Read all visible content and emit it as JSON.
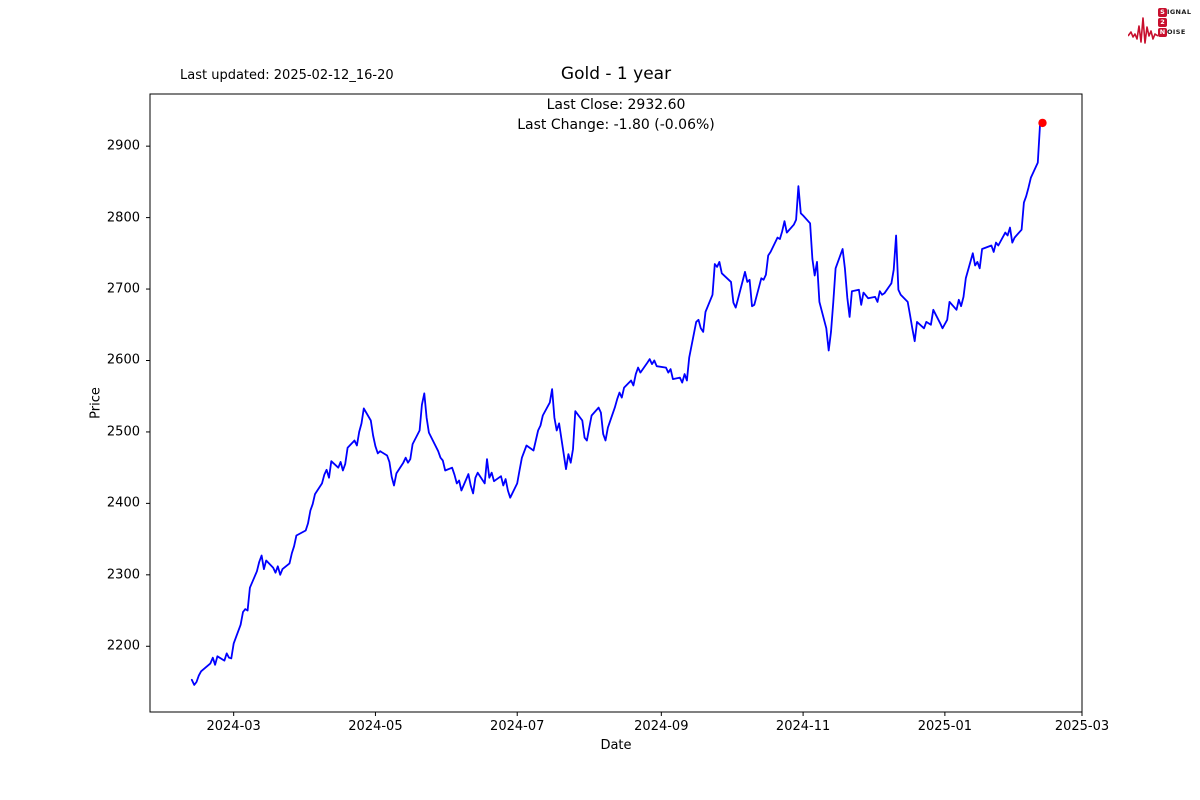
{
  "header": {
    "last_updated": "Last updated: 2025-02-12_16-20"
  },
  "logo": {
    "word1_initial": "S",
    "word1_rest": "IGNAL",
    "word2": "2",
    "word3_initial": "N",
    "word3_rest": "OISE",
    "color": "#c8102e"
  },
  "chart_data": {
    "type": "line",
    "title": "Gold - 1 year",
    "subtitle_lines": [
      "Last Close: 2932.60",
      "Last Change: -1.80 (-0.06%)"
    ],
    "xlabel": "Date",
    "ylabel": "Price",
    "last_close": 2932.6,
    "last_change": -1.8,
    "last_change_pct": -0.06,
    "line_color": "#0000ff",
    "marker_color": "#ff0000",
    "axis_color": "#000000",
    "grid": false,
    "legend": false,
    "x_range": [
      "2024-01-25",
      "2025-03-01"
    ],
    "y_range": [
      2108,
      2973
    ],
    "y_ticks": [
      2200,
      2300,
      2400,
      2500,
      2600,
      2700,
      2800,
      2900
    ],
    "x_ticks": [
      {
        "label": "2024-03",
        "date": "2024-03-01"
      },
      {
        "label": "2024-05",
        "date": "2024-05-01"
      },
      {
        "label": "2024-07",
        "date": "2024-07-01"
      },
      {
        "label": "2024-09",
        "date": "2024-09-01"
      },
      {
        "label": "2024-11",
        "date": "2024-11-01"
      },
      {
        "label": "2025-01",
        "date": "2025-01-01"
      },
      {
        "label": "2025-03",
        "date": "2025-03-01"
      }
    ],
    "series": [
      {
        "name": "Gold",
        "points": [
          [
            "2024-02-12",
            2153
          ],
          [
            "2024-02-13",
            2146
          ],
          [
            "2024-02-14",
            2150
          ],
          [
            "2024-02-15",
            2159
          ],
          [
            "2024-02-16",
            2165
          ],
          [
            "2024-02-20",
            2176
          ],
          [
            "2024-02-21",
            2184
          ],
          [
            "2024-02-22",
            2174
          ],
          [
            "2024-02-23",
            2186
          ],
          [
            "2024-02-26",
            2180
          ],
          [
            "2024-02-27",
            2190
          ],
          [
            "2024-02-28",
            2184
          ],
          [
            "2024-02-29",
            2183
          ],
          [
            "2024-03-01",
            2204
          ],
          [
            "2024-03-04",
            2230
          ],
          [
            "2024-03-05",
            2248
          ],
          [
            "2024-03-06",
            2252
          ],
          [
            "2024-03-07",
            2250
          ],
          [
            "2024-03-08",
            2282
          ],
          [
            "2024-03-11",
            2305
          ],
          [
            "2024-03-12",
            2318
          ],
          [
            "2024-03-13",
            2327
          ],
          [
            "2024-03-14",
            2308
          ],
          [
            "2024-03-15",
            2320
          ],
          [
            "2024-03-18",
            2310
          ],
          [
            "2024-03-19",
            2303
          ],
          [
            "2024-03-20",
            2312
          ],
          [
            "2024-03-21",
            2300
          ],
          [
            "2024-03-22",
            2308
          ],
          [
            "2024-03-25",
            2316
          ],
          [
            "2024-03-26",
            2330
          ],
          [
            "2024-03-27",
            2340
          ],
          [
            "2024-03-28",
            2355
          ],
          [
            "2024-04-01",
            2362
          ],
          [
            "2024-04-02",
            2372
          ],
          [
            "2024-04-03",
            2390
          ],
          [
            "2024-04-04",
            2399
          ],
          [
            "2024-04-05",
            2413
          ],
          [
            "2024-04-08",
            2428
          ],
          [
            "2024-04-09",
            2440
          ],
          [
            "2024-04-10",
            2447
          ],
          [
            "2024-04-11",
            2436
          ],
          [
            "2024-04-12",
            2459
          ],
          [
            "2024-04-15",
            2450
          ],
          [
            "2024-04-16",
            2458
          ],
          [
            "2024-04-17",
            2446
          ],
          [
            "2024-04-18",
            2455
          ],
          [
            "2024-04-19",
            2478
          ],
          [
            "2024-04-22",
            2488
          ],
          [
            "2024-04-23",
            2481
          ],
          [
            "2024-04-24",
            2500
          ],
          [
            "2024-04-25",
            2512
          ],
          [
            "2024-04-26",
            2533
          ],
          [
            "2024-04-29",
            2516
          ],
          [
            "2024-04-30",
            2495
          ],
          [
            "2024-05-01",
            2480
          ],
          [
            "2024-05-02",
            2470
          ],
          [
            "2024-05-03",
            2473
          ],
          [
            "2024-05-06",
            2467
          ],
          [
            "2024-05-07",
            2458
          ],
          [
            "2024-05-08",
            2437
          ],
          [
            "2024-05-09",
            2425
          ],
          [
            "2024-05-10",
            2442
          ],
          [
            "2024-05-13",
            2457
          ],
          [
            "2024-05-14",
            2464
          ],
          [
            "2024-05-15",
            2457
          ],
          [
            "2024-05-16",
            2462
          ],
          [
            "2024-05-17",
            2483
          ],
          [
            "2024-05-20",
            2502
          ],
          [
            "2024-05-21",
            2538
          ],
          [
            "2024-05-22",
            2554
          ],
          [
            "2024-05-23",
            2520
          ],
          [
            "2024-05-24",
            2499
          ],
          [
            "2024-05-28",
            2473
          ],
          [
            "2024-05-29",
            2464
          ],
          [
            "2024-05-30",
            2460
          ],
          [
            "2024-05-31",
            2446
          ],
          [
            "2024-06-03",
            2450
          ],
          [
            "2024-06-04",
            2440
          ],
          [
            "2024-06-05",
            2428
          ],
          [
            "2024-06-06",
            2432
          ],
          [
            "2024-06-07",
            2418
          ],
          [
            "2024-06-10",
            2441
          ],
          [
            "2024-06-11",
            2425
          ],
          [
            "2024-06-12",
            2414
          ],
          [
            "2024-06-13",
            2436
          ],
          [
            "2024-06-14",
            2443
          ],
          [
            "2024-06-17",
            2428
          ],
          [
            "2024-06-18",
            2462
          ],
          [
            "2024-06-19",
            2436
          ],
          [
            "2024-06-20",
            2443
          ],
          [
            "2024-06-21",
            2431
          ],
          [
            "2024-06-24",
            2438
          ],
          [
            "2024-06-25",
            2425
          ],
          [
            "2024-06-26",
            2434
          ],
          [
            "2024-06-27",
            2418
          ],
          [
            "2024-06-28",
            2408
          ],
          [
            "2024-07-01",
            2428
          ],
          [
            "2024-07-02",
            2446
          ],
          [
            "2024-07-03",
            2464
          ],
          [
            "2024-07-05",
            2481
          ],
          [
            "2024-07-08",
            2474
          ],
          [
            "2024-07-09",
            2488
          ],
          [
            "2024-07-10",
            2502
          ],
          [
            "2024-07-11",
            2509
          ],
          [
            "2024-07-12",
            2523
          ],
          [
            "2024-07-15",
            2541
          ],
          [
            "2024-07-16",
            2560
          ],
          [
            "2024-07-17",
            2520
          ],
          [
            "2024-07-18",
            2502
          ],
          [
            "2024-07-19",
            2512
          ],
          [
            "2024-07-22",
            2448
          ],
          [
            "2024-07-23",
            2469
          ],
          [
            "2024-07-24",
            2457
          ],
          [
            "2024-07-25",
            2476
          ],
          [
            "2024-07-26",
            2529
          ],
          [
            "2024-07-29",
            2516
          ],
          [
            "2024-07-30",
            2492
          ],
          [
            "2024-07-31",
            2488
          ],
          [
            "2024-08-01",
            2506
          ],
          [
            "2024-08-02",
            2523
          ],
          [
            "2024-08-05",
            2534
          ],
          [
            "2024-08-06",
            2527
          ],
          [
            "2024-08-07",
            2497
          ],
          [
            "2024-08-08",
            2488
          ],
          [
            "2024-08-09",
            2506
          ],
          [
            "2024-08-12",
            2534
          ],
          [
            "2024-08-13",
            2546
          ],
          [
            "2024-08-14",
            2555
          ],
          [
            "2024-08-15",
            2548
          ],
          [
            "2024-08-16",
            2562
          ],
          [
            "2024-08-19",
            2572
          ],
          [
            "2024-08-20",
            2565
          ],
          [
            "2024-08-21",
            2581
          ],
          [
            "2024-08-22",
            2590
          ],
          [
            "2024-08-23",
            2583
          ],
          [
            "2024-08-26",
            2597
          ],
          [
            "2024-08-27",
            2602
          ],
          [
            "2024-08-28",
            2595
          ],
          [
            "2024-08-29",
            2600
          ],
          [
            "2024-08-30",
            2592
          ],
          [
            "2024-09-03",
            2590
          ],
          [
            "2024-09-04",
            2583
          ],
          [
            "2024-09-05",
            2588
          ],
          [
            "2024-09-06",
            2574
          ],
          [
            "2024-09-09",
            2576
          ],
          [
            "2024-09-10",
            2569
          ],
          [
            "2024-09-11",
            2581
          ],
          [
            "2024-09-12",
            2572
          ],
          [
            "2024-09-13",
            2604
          ],
          [
            "2024-09-16",
            2654
          ],
          [
            "2024-09-17",
            2657
          ],
          [
            "2024-09-18",
            2645
          ],
          [
            "2024-09-19",
            2640
          ],
          [
            "2024-09-20",
            2668
          ],
          [
            "2024-09-23",
            2692
          ],
          [
            "2024-09-24",
            2735
          ],
          [
            "2024-09-25",
            2731
          ],
          [
            "2024-09-26",
            2738
          ],
          [
            "2024-09-27",
            2722
          ],
          [
            "2024-09-30",
            2713
          ],
          [
            "2024-10-01",
            2710
          ],
          [
            "2024-10-02",
            2681
          ],
          [
            "2024-10-03",
            2674
          ],
          [
            "2024-10-04",
            2686
          ],
          [
            "2024-10-07",
            2724
          ],
          [
            "2024-10-08",
            2710
          ],
          [
            "2024-10-09",
            2713
          ],
          [
            "2024-10-10",
            2676
          ],
          [
            "2024-10-11",
            2678
          ],
          [
            "2024-10-14",
            2715
          ],
          [
            "2024-10-15",
            2713
          ],
          [
            "2024-10-16",
            2720
          ],
          [
            "2024-10-17",
            2747
          ],
          [
            "2024-10-18",
            2752
          ],
          [
            "2024-10-21",
            2772
          ],
          [
            "2024-10-22",
            2770
          ],
          [
            "2024-10-23",
            2781
          ],
          [
            "2024-10-24",
            2795
          ],
          [
            "2024-10-25",
            2779
          ],
          [
            "2024-10-28",
            2790
          ],
          [
            "2024-10-29",
            2797
          ],
          [
            "2024-10-30",
            2844
          ],
          [
            "2024-10-31",
            2806
          ],
          [
            "2024-11-01",
            2803
          ],
          [
            "2024-11-04",
            2792
          ],
          [
            "2024-11-05",
            2742
          ],
          [
            "2024-11-06",
            2719
          ],
          [
            "2024-11-07",
            2738
          ],
          [
            "2024-11-08",
            2682
          ],
          [
            "2024-11-11",
            2645
          ],
          [
            "2024-11-12",
            2614
          ],
          [
            "2024-11-13",
            2640
          ],
          [
            "2024-11-14",
            2682
          ],
          [
            "2024-11-15",
            2729
          ],
          [
            "2024-11-18",
            2756
          ],
          [
            "2024-11-19",
            2729
          ],
          [
            "2024-11-20",
            2688
          ],
          [
            "2024-11-21",
            2661
          ],
          [
            "2024-11-22",
            2697
          ],
          [
            "2024-11-25",
            2699
          ],
          [
            "2024-11-26",
            2678
          ],
          [
            "2024-11-27",
            2695
          ],
          [
            "2024-11-29",
            2687
          ],
          [
            "2024-12-02",
            2689
          ],
          [
            "2024-12-03",
            2682
          ],
          [
            "2024-12-04",
            2697
          ],
          [
            "2024-12-05",
            2692
          ],
          [
            "2024-12-06",
            2694
          ],
          [
            "2024-12-09",
            2708
          ],
          [
            "2024-12-10",
            2727
          ],
          [
            "2024-12-11",
            2775
          ],
          [
            "2024-12-12",
            2699
          ],
          [
            "2024-12-13",
            2692
          ],
          [
            "2024-12-16",
            2682
          ],
          [
            "2024-12-17",
            2664
          ],
          [
            "2024-12-18",
            2645
          ],
          [
            "2024-12-19",
            2627
          ],
          [
            "2024-12-20",
            2654
          ],
          [
            "2024-12-23",
            2645
          ],
          [
            "2024-12-24",
            2654
          ],
          [
            "2024-12-26",
            2650
          ],
          [
            "2024-12-27",
            2671
          ],
          [
            "2024-12-30",
            2652
          ],
          [
            "2024-12-31",
            2645
          ],
          [
            "2025-01-02",
            2657
          ],
          [
            "2025-01-03",
            2682
          ],
          [
            "2025-01-06",
            2671
          ],
          [
            "2025-01-07",
            2685
          ],
          [
            "2025-01-08",
            2676
          ],
          [
            "2025-01-09",
            2689
          ],
          [
            "2025-01-10",
            2715
          ],
          [
            "2025-01-13",
            2750
          ],
          [
            "2025-01-14",
            2733
          ],
          [
            "2025-01-15",
            2738
          ],
          [
            "2025-01-16",
            2729
          ],
          [
            "2025-01-17",
            2756
          ],
          [
            "2025-01-21",
            2761
          ],
          [
            "2025-01-22",
            2752
          ],
          [
            "2025-01-23",
            2765
          ],
          [
            "2025-01-24",
            2761
          ],
          [
            "2025-01-27",
            2779
          ],
          [
            "2025-01-28",
            2775
          ],
          [
            "2025-01-29",
            2786
          ],
          [
            "2025-01-30",
            2765
          ],
          [
            "2025-01-31",
            2772
          ],
          [
            "2025-02-03",
            2783
          ],
          [
            "2025-02-04",
            2821
          ],
          [
            "2025-02-05",
            2830
          ],
          [
            "2025-02-06",
            2842
          ],
          [
            "2025-02-07",
            2856
          ],
          [
            "2025-02-10",
            2877
          ],
          [
            "2025-02-11",
            2934.4
          ],
          [
            "2025-02-12",
            2932.6
          ]
        ]
      }
    ]
  }
}
